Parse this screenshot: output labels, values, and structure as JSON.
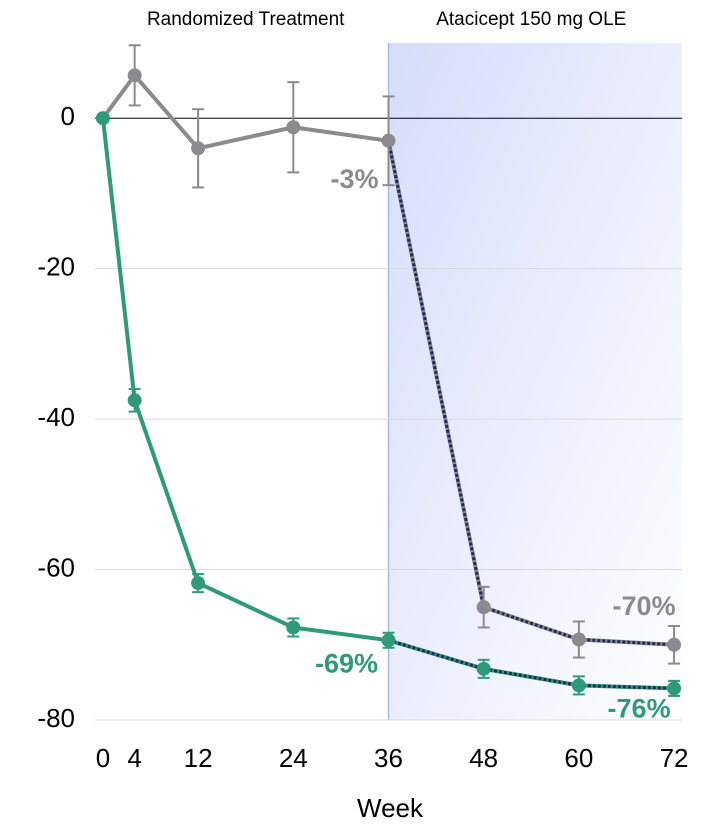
{
  "chart_data": {
    "type": "line",
    "x_label": "Week",
    "regions": [
      {
        "label": "Randomized Treatment",
        "start": 0,
        "end": 36,
        "shaded": false
      },
      {
        "label": "Atacicept 150 mg OLE",
        "start": 36,
        "end": 72,
        "shaded": true
      }
    ],
    "x": [
      0,
      4,
      12,
      24,
      36,
      48,
      60,
      72
    ],
    "series": [
      {
        "color": "#8a8a8f",
        "values": [
          0,
          5.7,
          -4,
          -1.2,
          -3,
          -65,
          -69.3,
          -70
        ],
        "errors": [
          0,
          4,
          5.2,
          6,
          5.9,
          2.7,
          2.4,
          2.5
        ],
        "value_labels": [
          null,
          null,
          null,
          null,
          "-3%",
          null,
          null,
          "-70%"
        ]
      },
      {
        "color": "#2e9a78",
        "values": [
          0,
          -37.5,
          -61.8,
          -67.7,
          -69.4,
          -73.2,
          -75.4,
          -75.8
        ],
        "errors": [
          0,
          1.5,
          1.2,
          1.2,
          1.0,
          1.2,
          1.2,
          1.0
        ],
        "value_labels": [
          null,
          null,
          null,
          null,
          "-69%",
          null,
          null,
          "-76%"
        ]
      }
    ],
    "ole_line_color": "#1f2a5e",
    "xlim": [
      -1,
      73
    ],
    "ylim": [
      -80,
      10
    ],
    "xticks": [
      0,
      4,
      12,
      24,
      36,
      48,
      60,
      72
    ],
    "yticks": [
      0,
      -20,
      -40,
      -60,
      -80
    ],
    "grid": true
  }
}
